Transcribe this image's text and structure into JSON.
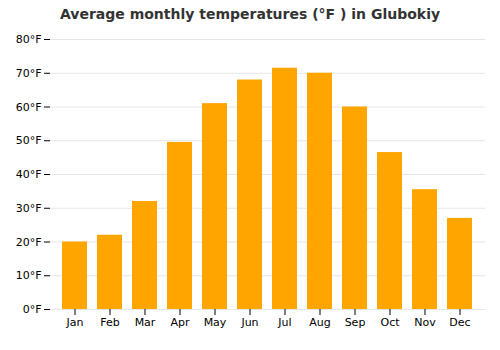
{
  "chart_data": {
    "type": "bar",
    "title": "Average monthly temperatures (°F ) in Glubokiy",
    "categories": [
      "Jan",
      "Feb",
      "Mar",
      "Apr",
      "May",
      "Jun",
      "Jul",
      "Aug",
      "Sep",
      "Oct",
      "Nov",
      "Dec"
    ],
    "values": [
      20,
      22,
      32,
      49.5,
      61,
      68,
      71.5,
      70,
      60,
      46.5,
      35.5,
      27
    ],
    "color": "#FFA500",
    "ylim": [
      0,
      80
    ],
    "yticks": [
      {
        "value": 0,
        "label": "0°F"
      },
      {
        "value": 10,
        "label": "10°F"
      },
      {
        "value": 20,
        "label": "20°F"
      },
      {
        "value": 30,
        "label": "30°F"
      },
      {
        "value": 40,
        "label": "40°F"
      },
      {
        "value": 50,
        "label": "50°F"
      },
      {
        "value": 60,
        "label": "60°F"
      },
      {
        "value": 70,
        "label": "70°F"
      },
      {
        "value": 80,
        "label": "80°F"
      }
    ],
    "grid": true
  }
}
